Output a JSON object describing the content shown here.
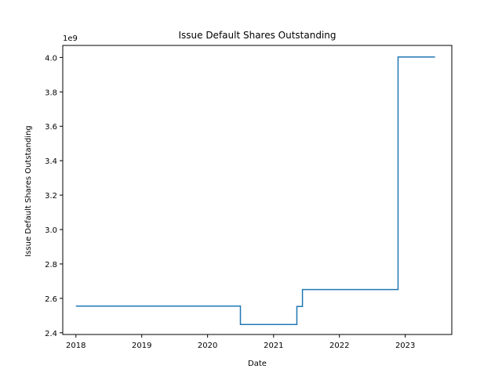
{
  "chart_data": {
    "type": "line",
    "title": "Issue Default Shares Outstanding",
    "xlabel": "Date",
    "ylabel": "Issue Default Shares Outstanding",
    "y_offset_label": "1e9",
    "x_axis": "date",
    "xlim": [
      "2017-10-20",
      "2023-09-16"
    ],
    "ylim": [
      2.39,
      4.07
    ],
    "x_ticks": [
      {
        "date": "2018-01-01",
        "label": "2018"
      },
      {
        "date": "2019-01-01",
        "label": "2019"
      },
      {
        "date": "2020-01-01",
        "label": "2020"
      },
      {
        "date": "2021-01-01",
        "label": "2021"
      },
      {
        "date": "2022-01-01",
        "label": "2022"
      },
      {
        "date": "2023-01-01",
        "label": "2023"
      }
    ],
    "y_ticks": [
      {
        "value": 2.4,
        "label": "2.4"
      },
      {
        "value": 2.6,
        "label": "2.6"
      },
      {
        "value": 2.8,
        "label": "2.8"
      },
      {
        "value": 3.0,
        "label": "3.0"
      },
      {
        "value": 3.2,
        "label": "3.2"
      },
      {
        "value": 3.4,
        "label": "3.4"
      },
      {
        "value": 3.6,
        "label": "3.6"
      },
      {
        "value": 3.8,
        "label": "3.8"
      },
      {
        "value": 4.0,
        "label": "4.0"
      }
    ],
    "grid": false,
    "series": [
      {
        "color": "#1f77b4",
        "points": [
          {
            "x": "2018-01-01",
            "y": 2.555
          },
          {
            "x": "2020-07-01",
            "y": 2.555
          },
          {
            "x": "2020-07-01",
            "y": 2.448
          },
          {
            "x": "2021-05-10",
            "y": 2.448
          },
          {
            "x": "2021-05-10",
            "y": 2.553
          },
          {
            "x": "2021-06-10",
            "y": 2.553
          },
          {
            "x": "2021-06-10",
            "y": 2.651
          },
          {
            "x": "2022-11-22",
            "y": 2.651
          },
          {
            "x": "2022-11-22",
            "y": 4.003
          },
          {
            "x": "2023-06-15",
            "y": 4.003
          }
        ]
      }
    ]
  }
}
